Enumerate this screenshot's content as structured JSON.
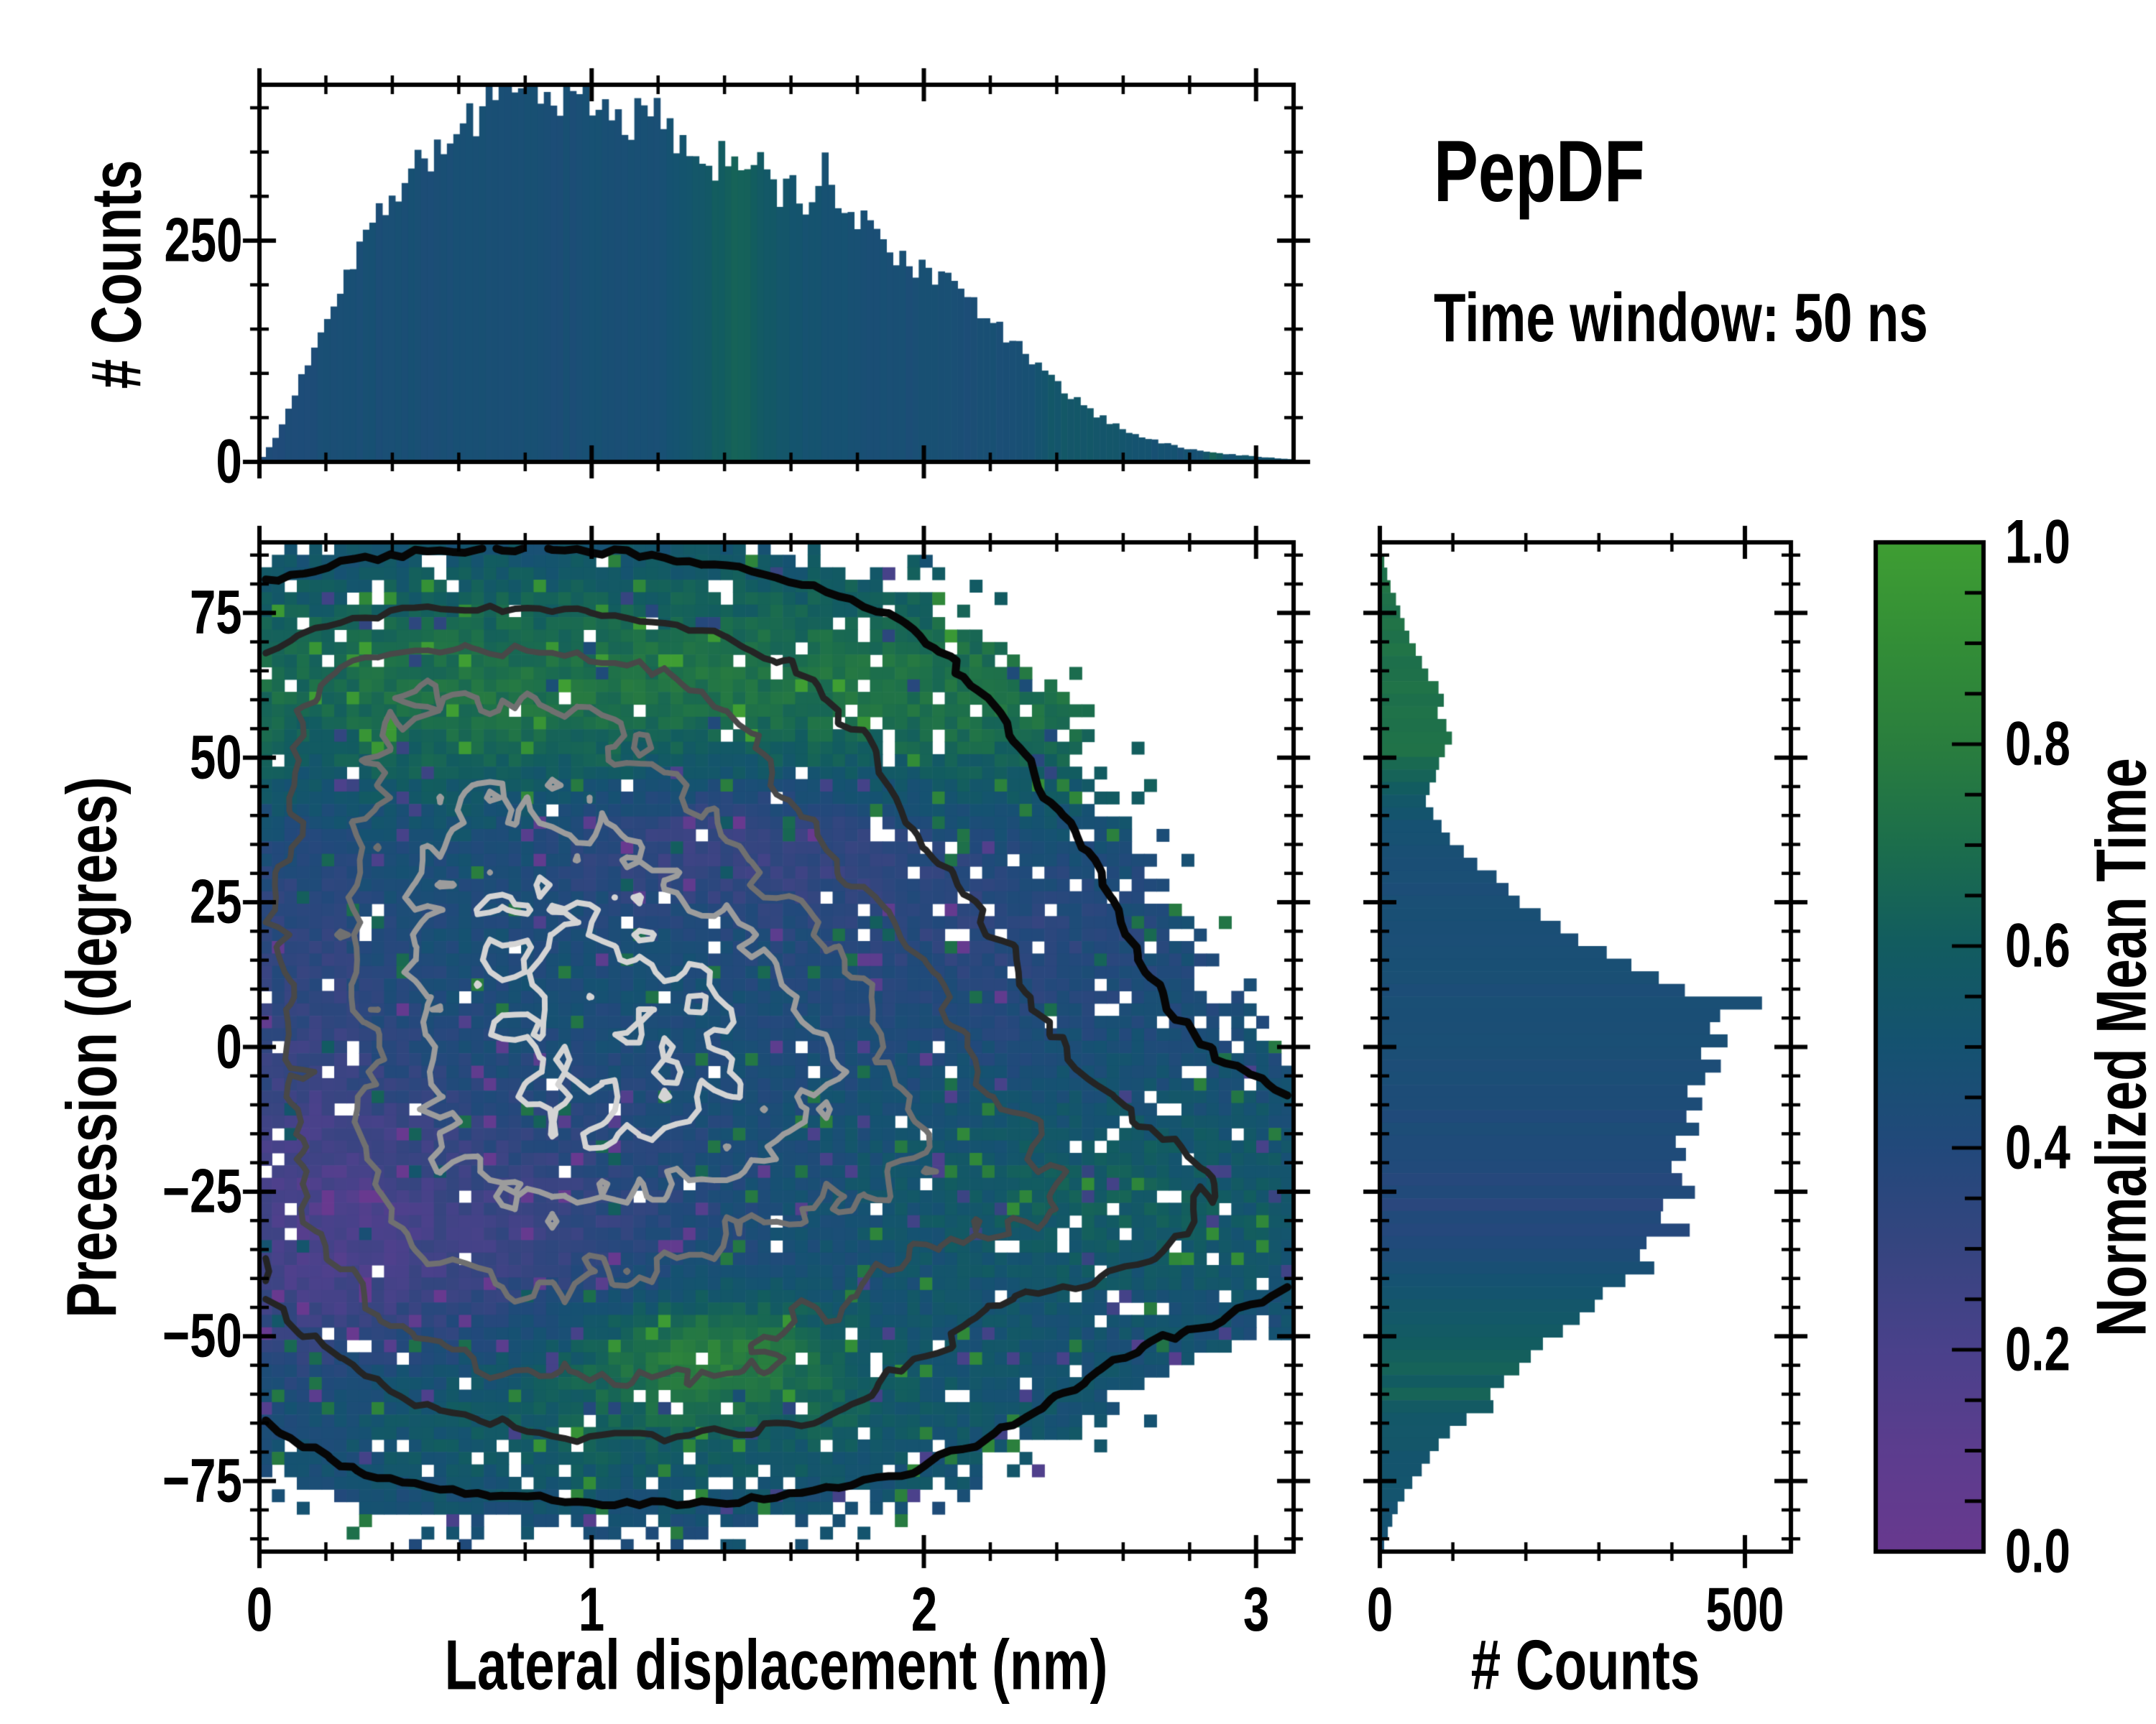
{
  "title": "PepDF",
  "subtitle": "Time window: 50 ns",
  "figure": {
    "background": "#ffffff",
    "text_color": "#000000"
  },
  "chart_data": [
    {
      "id": "top_histogram",
      "type": "bar",
      "orientation": "vertical",
      "ylabel": "# Counts",
      "xlim": [
        0,
        3.113
      ],
      "ylim": [
        0,
        426
      ],
      "yticks": {
        "values": [
          0,
          250
        ],
        "labels": [
          "0",
          "250"
        ]
      },
      "y_minor_step": 50,
      "x_minor_step": 0.2,
      "bin_start": 0,
      "bin_width": 0.0324,
      "values": [
        6,
        22,
        48,
        78,
        108,
        140,
        168,
        195,
        222,
        248,
        262,
        285,
        305,
        318,
        338,
        352,
        340,
        372,
        360,
        398,
        385,
        412,
        395,
        420,
        408,
        428,
        400,
        415,
        425,
        405,
        418,
        388,
        410,
        396,
        378,
        398,
        382,
        392,
        362,
        372,
        348,
        356,
        332,
        350,
        342,
        312,
        336,
        322,
        302,
        312,
        288,
        296,
        348,
        300,
        272,
        265,
        270,
        252,
        240,
        232,
        225,
        215,
        205,
        228,
        195,
        185,
        175,
        162,
        150,
        140,
        128,
        115,
        102,
        92,
        82,
        72,
        62,
        54,
        47,
        41,
        35,
        30,
        26,
        22,
        19,
        16,
        14,
        12,
        10,
        9,
        8,
        7,
        6,
        5,
        4,
        3
      ],
      "color_values": [
        0.43,
        0.42,
        0.43,
        0.44,
        0.43,
        0.44,
        0.46,
        0.47,
        0.46,
        0.45,
        0.47,
        0.46,
        0.48,
        0.46,
        0.47,
        0.45,
        0.46,
        0.47,
        0.46,
        0.46,
        0.47,
        0.45,
        0.46,
        0.48,
        0.46,
        0.47,
        0.46,
        0.45,
        0.47,
        0.46,
        0.46,
        0.48,
        0.45,
        0.46,
        0.47,
        0.46,
        0.46,
        0.47,
        0.5,
        0.52,
        0.55,
        0.57,
        0.6,
        0.62,
        0.64,
        0.62,
        0.58,
        0.56,
        0.54,
        0.52,
        0.5,
        0.5,
        0.49,
        0.48,
        0.48,
        0.47,
        0.47,
        0.46,
        0.47,
        0.46,
        0.45,
        0.47,
        0.46,
        0.47,
        0.46,
        0.45,
        0.46,
        0.47,
        0.46,
        0.47,
        0.46,
        0.47,
        0.52,
        0.54,
        0.55,
        0.56,
        0.55,
        0.54,
        0.55,
        0.53,
        0.52,
        0.5,
        0.5,
        0.49,
        0.5,
        0.48,
        0.49,
        0.5,
        0.68,
        0.52,
        0.5,
        0.55,
        0.49,
        0.52,
        0.5,
        0.53
      ]
    },
    {
      "id": "joint_heatmap",
      "type": "heatmap",
      "xlabel": "Lateral displacement (nm)",
      "ylabel": "Precession (degrees)",
      "xlim": [
        0,
        3.113
      ],
      "ylim": [
        -87.2,
        87.2
      ],
      "xticks": {
        "values": [
          0,
          1,
          2,
          3
        ],
        "labels": [
          "0",
          "1",
          "2",
          "3"
        ]
      },
      "yticks": {
        "values": [
          75,
          50,
          25,
          0,
          -25,
          -50,
          -75
        ],
        "labels": [
          "75",
          "50",
          "25",
          "0",
          "−25",
          "−50",
          "−75"
        ]
      },
      "x_minor_step": 0.2,
      "y_minor_step": 5,
      "grid": {
        "nx": 83,
        "ny": 81
      },
      "random_seed": 42,
      "display_threshold": 0.048,
      "hole_probability": 0.065,
      "density_components": [
        {
          "cx": 0.95,
          "cy": 6,
          "sx": 0.62,
          "sy": 30,
          "a": 1.0
        },
        {
          "cx": 1.55,
          "cy": -6,
          "sx": 0.55,
          "sy": 26,
          "a": 0.72
        },
        {
          "cx": 0.55,
          "cy": -30,
          "sx": 0.42,
          "sy": 20,
          "a": 0.55
        },
        {
          "cx": 0.9,
          "cy": 58,
          "sx": 0.6,
          "sy": 13,
          "a": 0.52
        },
        {
          "cx": 0.6,
          "cy": 30,
          "sx": 0.5,
          "sy": 18,
          "a": 0.55
        },
        {
          "cx": 2.45,
          "cy": -26,
          "sx": 0.5,
          "sy": 13,
          "a": 0.4
        },
        {
          "cx": 1.3,
          "cy": -55,
          "sx": 0.55,
          "sy": 12,
          "a": 0.38
        },
        {
          "cx": 0.35,
          "cy": 62,
          "sx": 0.3,
          "sy": 10,
          "a": 0.25
        }
      ],
      "meantime_base": 0.455,
      "meantime_components": [
        {
          "cx": null,
          "cy": 62,
          "sx": 0,
          "sy": 15,
          "a": 0.27
        },
        {
          "cx": 0.5,
          "cy": -32,
          "sx": 0.55,
          "sy": 17,
          "a": -0.2
        },
        {
          "cx": 1.4,
          "cy": 36,
          "sx": 0.4,
          "sy": 9,
          "a": -0.22
        },
        {
          "cx": 0.12,
          "cy": -5,
          "sx": 0.22,
          "sy": 45,
          "a": -0.13
        },
        {
          "cx": 1.35,
          "cy": -52,
          "sx": 0.28,
          "sy": 7,
          "a": 0.3
        },
        {
          "cx": 1.1,
          "cy": -64,
          "sx": 0.9,
          "sy": 10,
          "a": 0.16
        },
        {
          "cx": 2.55,
          "cy": -27,
          "sx": 0.55,
          "sy": 13,
          "a": 0.14
        },
        {
          "cx": 2.2,
          "cy": 20,
          "sx": 0.4,
          "sy": 14,
          "a": -0.1
        }
      ],
      "contours": {
        "levels_relative": [
          0.05,
          0.18,
          0.33,
          0.5,
          0.66,
          0.82
        ],
        "colors": [
          "#060606",
          "#242424",
          "#484848",
          "#707070",
          "#9c9c9c",
          "#d4d4d4"
        ],
        "line_widths": [
          11,
          9,
          8,
          8,
          8,
          8
        ]
      }
    },
    {
      "id": "right_histogram",
      "type": "bar",
      "orientation": "horizontal",
      "xlabel": "# Counts",
      "xlim": [
        0,
        563
      ],
      "ylim": [
        -87.2,
        87.2
      ],
      "xticks": {
        "values": [
          0,
          500
        ],
        "labels": [
          "0",
          "500"
        ]
      },
      "x_minor_step": 100,
      "y_minor_step": 5,
      "bin_start": 87.2,
      "bin_width": -2.18,
      "values": [
        3,
        6,
        10,
        15,
        22,
        28,
        34,
        40,
        50,
        58,
        66,
        80,
        88,
        78,
        92,
        100,
        88,
        82,
        76,
        68,
        62,
        72,
        85,
        98,
        115,
        135,
        158,
        175,
        192,
        215,
        248,
        278,
        312,
        348,
        385,
        425,
        520,
        475,
        455,
        468,
        442,
        465,
        450,
        432,
        446,
        428,
        432,
        405,
        418,
        392,
        412,
        430,
        396,
        382,
        420,
        372,
        348,
        368,
        332,
        312,
        292,
        272,
        248,
        228,
        208,
        188,
        168,
        152,
        155,
        118,
        96,
        82,
        70,
        56,
        44,
        33,
        25,
        17,
        11,
        6
      ],
      "color_values": [
        0.72,
        0.73,
        0.71,
        0.74,
        0.72,
        0.7,
        0.73,
        0.72,
        0.74,
        0.71,
        0.72,
        0.73,
        0.7,
        0.72,
        0.71,
        0.73,
        0.72,
        0.68,
        0.64,
        0.6,
        0.56,
        0.52,
        0.5,
        0.48,
        0.47,
        0.46,
        0.47,
        0.45,
        0.46,
        0.47,
        0.46,
        0.45,
        0.46,
        0.47,
        0.46,
        0.45,
        0.46,
        0.46,
        0.45,
        0.46,
        0.45,
        0.44,
        0.45,
        0.43,
        0.44,
        0.42,
        0.44,
        0.43,
        0.42,
        0.4,
        0.38,
        0.41,
        0.36,
        0.4,
        0.39,
        0.41,
        0.44,
        0.47,
        0.5,
        0.52,
        0.54,
        0.56,
        0.58,
        0.6,
        0.62,
        0.63,
        0.6,
        0.64,
        0.58,
        0.56,
        0.55,
        0.54,
        0.53,
        0.52,
        0.52,
        0.51,
        0.5,
        0.5,
        0.49,
        0.48
      ]
    },
    {
      "id": "colorbar",
      "type": "colorbar",
      "label": "Normalized Mean Time",
      "range": [
        0,
        1
      ],
      "ticks": {
        "values": [
          1.0,
          0.8,
          0.6,
          0.4,
          0.2,
          0.0
        ],
        "labels": [
          "1.0",
          "0.8",
          "0.6",
          "0.4",
          "0.2",
          "0.0"
        ]
      },
      "minor_step": 0.05,
      "stops": [
        [
          0.0,
          "#68398f"
        ],
        [
          0.1,
          "#5c3d8e"
        ],
        [
          0.2,
          "#4a418b"
        ],
        [
          0.3,
          "#364580"
        ],
        [
          0.4,
          "#22497b"
        ],
        [
          0.5,
          "#155271"
        ],
        [
          0.6,
          "#125c60"
        ],
        [
          0.7,
          "#1c6e4c"
        ],
        [
          0.8,
          "#2a7e3e"
        ],
        [
          0.9,
          "#338e37"
        ],
        [
          1.0,
          "#3f9e33"
        ]
      ]
    }
  ]
}
